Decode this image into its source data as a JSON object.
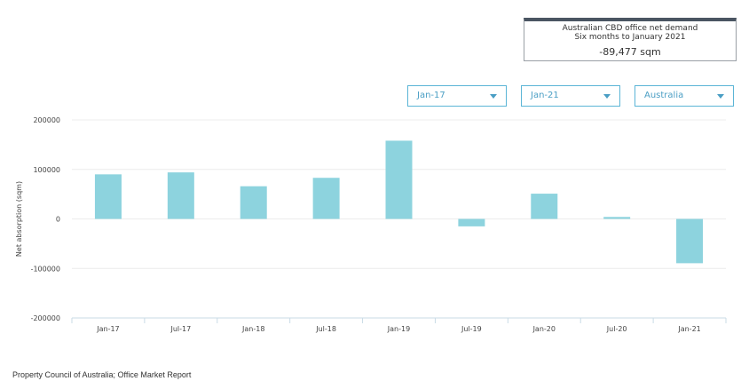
{
  "summary": {
    "title": "Australian CBD office net demand",
    "subtitle": "Six months to January 2021",
    "value": "-89,477 sqm"
  },
  "filters": {
    "from": "Jan-17",
    "to": "Jan-21",
    "region": "Australia"
  },
  "chart_data": {
    "type": "bar",
    "categories": [
      "Jan-17",
      "Jul-17",
      "Jan-18",
      "Jul-18",
      "Jan-19",
      "Jul-19",
      "Jan-20",
      "Jul-20",
      "Jan-21"
    ],
    "values": [
      90000,
      94000,
      66000,
      83000,
      158000,
      -15000,
      51000,
      4000,
      -89477
    ],
    "ylabel": "Net absorption (sqm)",
    "yticks": [
      200000,
      100000,
      0,
      -100000,
      -200000
    ],
    "ylim": [
      -200000,
      200000
    ],
    "grid": true,
    "bar_color": "#8dd3de"
  },
  "source": "Property Council of Australia; Office Market Report"
}
